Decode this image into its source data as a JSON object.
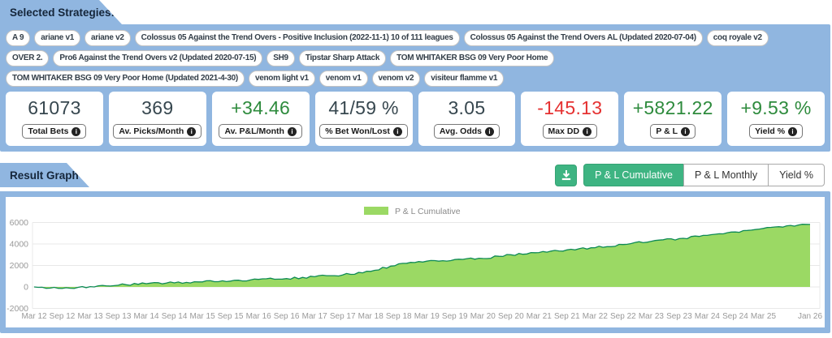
{
  "selected_strategies": {
    "title": "Selected Strategies:",
    "rows": [
      [
        "A 9",
        "ariane v1",
        "ariane v2",
        "Colossus 05 Against the Trend Overs - Positive Inclusion (2022-11-1) 10 of 111 leagues",
        "Colossus 05 Against the Trend Overs AL (Updated 2020-07-04)",
        "coq royale v2"
      ],
      [
        "OVER 2.",
        "Pro6 Against the Trend Overs v2 (Updated 2020-07-15)",
        "SH9",
        "Tipstar Sharp Attack",
        "TOM WHITAKER BSG 09 Very Poor Home"
      ],
      [
        "TOM WHITAKER BSG 09 Very Poor Home (Updated 2021-4-30)",
        "venom light v1",
        "venom v1",
        "venom v2",
        "visiteur flamme v1"
      ]
    ]
  },
  "stats": [
    {
      "value": "61073",
      "label": "Total Bets",
      "tone": "dark"
    },
    {
      "value": "369",
      "label": "Av. Picks/Month",
      "tone": "dark"
    },
    {
      "value": "+34.46",
      "label": "Av. P&L/Month",
      "tone": "green"
    },
    {
      "value": "41/59 %",
      "label": "% Bet Won/Lost",
      "tone": "dark"
    },
    {
      "value": "3.05",
      "label": "Avg. Odds",
      "tone": "dark"
    },
    {
      "value": "-145.13",
      "label": "Max DD",
      "tone": "red"
    },
    {
      "value": "+5821.22",
      "label": "P & L",
      "tone": "green"
    },
    {
      "value": "+9.53 %",
      "label": "Yield %",
      "tone": "green"
    }
  ],
  "info_icon_glyph": "i",
  "result_graph": {
    "title": "Result Graph",
    "views": [
      {
        "label": "P & L Cumulative",
        "active": true
      },
      {
        "label": "P & L Monthly",
        "active": false
      },
      {
        "label": "Yield %",
        "active": false
      }
    ]
  },
  "chart_data": {
    "type": "area",
    "legend": "P & L Cumulative",
    "legend_position": "top-center",
    "grid": true,
    "x_labels": [
      "Mar 12",
      "Sep 12",
      "Mar 13",
      "Sep 13",
      "Mar 14",
      "Sep 14",
      "Mar 15",
      "Sep 15",
      "Mar 16",
      "Sep 16",
      "Mar 17",
      "Sep 17",
      "Mar 18",
      "Sep 18",
      "Mar 19",
      "Sep 19",
      "Mar 20",
      "Sep 20",
      "Mar 21",
      "Sep 21",
      "Mar 22",
      "Sep 22",
      "Mar 23",
      "Sep 23",
      "Mar 24",
      "Sep 24",
      "Mar 25",
      "Jan 26"
    ],
    "x_months": [
      0,
      6,
      12,
      18,
      24,
      30,
      36,
      42,
      48,
      54,
      60,
      66,
      72,
      78,
      84,
      90,
      96,
      102,
      108,
      114,
      120,
      126,
      132,
      138,
      144,
      150,
      156,
      166
    ],
    "values": [
      0,
      -145,
      30,
      160,
      300,
      380,
      470,
      540,
      700,
      780,
      950,
      1120,
      1450,
      2150,
      2400,
      2550,
      2650,
      3000,
      3200,
      3450,
      3650,
      3950,
      4250,
      4500,
      4800,
      5120,
      5450,
      5821
    ],
    "y_ticks": [
      -2000,
      0,
      2000,
      4000,
      6000
    ],
    "ylim": [
      -2000,
      6000
    ],
    "colors": {
      "fill": "#9bd964",
      "line": "#0e8a55",
      "grid": "#e8e8e8",
      "tick_text": "#999999"
    }
  },
  "colors": {
    "panel_blue": "#90b6e0",
    "accent_green": "#3eb482",
    "value_green": "#2e8b3d",
    "value_red": "#e53131",
    "value_dark": "#37474f"
  }
}
